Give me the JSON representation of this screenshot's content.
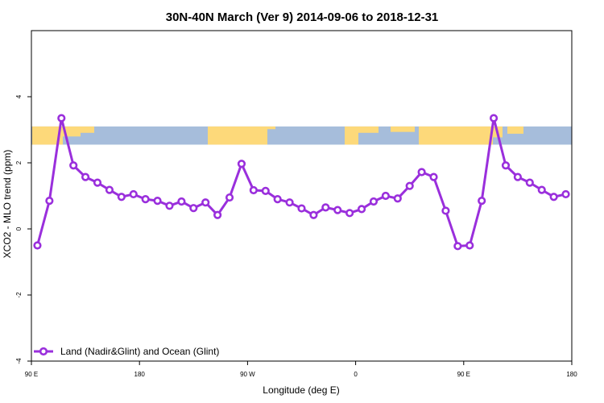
{
  "chart_data": {
    "type": "line",
    "title": "30N-40N March (Ver 9)   2014-09-06 to 2018-12-31",
    "xlabel": "Longitude (deg E)",
    "ylabel": "XCO2 - MLO trend (ppm)",
    "xlim": [
      90,
      540
    ],
    "ylim": [
      -4,
      6
    ],
    "x_ticks": [
      {
        "value": 90,
        "label": "90 E"
      },
      {
        "value": 180,
        "label": "180"
      },
      {
        "value": 270,
        "label": "90 W"
      },
      {
        "value": 360,
        "label": "0"
      },
      {
        "value": 450,
        "label": "90 E"
      },
      {
        "value": 540,
        "label": "180"
      }
    ],
    "y_ticks": [
      {
        "value": -4,
        "label": "-4"
      },
      {
        "value": -2,
        "label": "-2"
      },
      {
        "value": 0,
        "label": "0"
      },
      {
        "value": 2,
        "label": "2"
      },
      {
        "value": 4,
        "label": "4"
      }
    ],
    "map_strip": {
      "y_range": [
        2.55,
        3.1
      ],
      "ocean_color": "#a6bddb",
      "land_color": "#fdd97a"
    },
    "series": [
      {
        "name": "Land (Nadir&Glint) and Ocean (Glint)",
        "color": "#9a2fdc",
        "x": [
          95,
          105,
          115,
          125,
          135,
          145,
          155,
          165,
          175,
          185,
          195,
          205,
          215,
          225,
          235,
          245,
          255,
          265,
          275,
          285,
          295,
          305,
          315,
          325,
          335,
          345,
          355,
          365,
          375,
          385,
          395,
          405,
          415,
          425,
          435,
          445,
          455,
          465,
          475,
          485,
          495,
          505,
          515,
          525,
          535
        ],
        "y": [
          -0.5,
          0.85,
          3.35,
          1.92,
          1.57,
          1.4,
          1.18,
          0.97,
          1.05,
          0.9,
          0.85,
          0.7,
          0.83,
          0.63,
          0.8,
          0.42,
          0.95,
          1.97,
          1.17,
          1.15,
          0.9,
          0.8,
          0.62,
          0.42,
          0.65,
          0.57,
          0.48,
          0.6,
          0.83,
          1.0,
          0.92,
          1.3,
          1.72,
          1.57,
          0.55,
          -0.52,
          -0.5,
          0.85,
          3.35,
          1.92,
          1.57,
          1.4,
          1.18,
          0.97,
          1.05
        ]
      }
    ],
    "legend": {
      "position": "bottom-left",
      "entries": [
        "Land (Nadir&Glint) and Ocean (Glint)"
      ]
    },
    "grid": false
  }
}
